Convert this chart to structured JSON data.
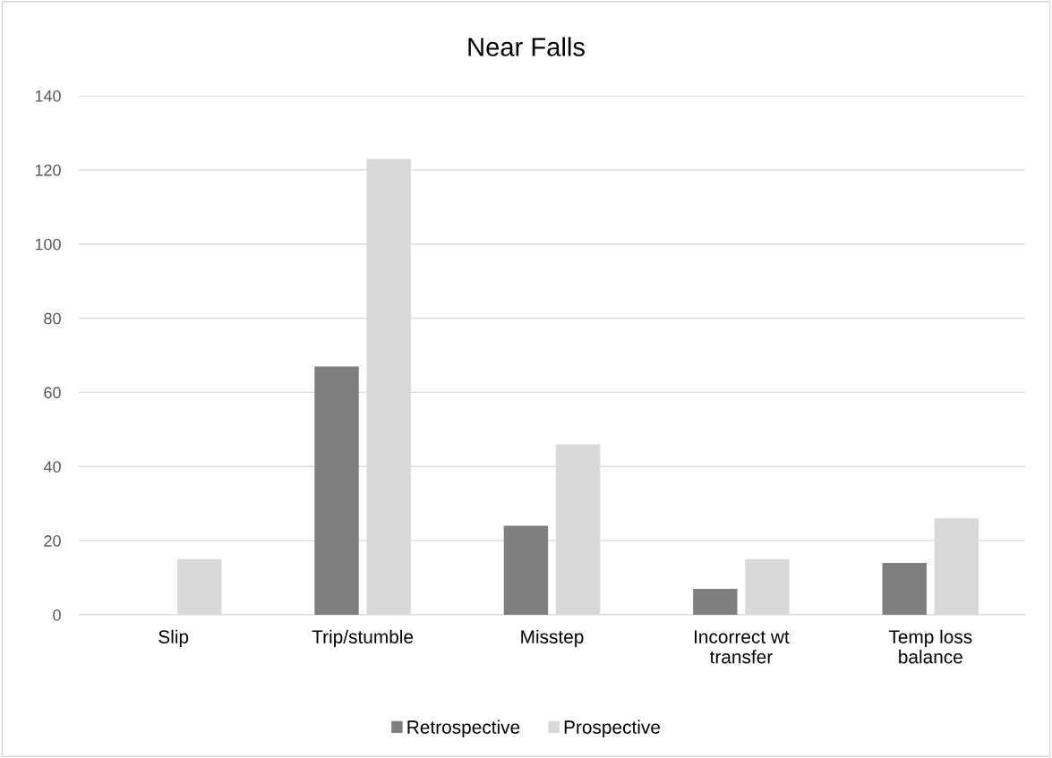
{
  "chart_data": {
    "type": "bar",
    "title": "Near Falls",
    "categories": [
      "Slip",
      "Trip/stumble",
      "Misstep",
      "Incorrect wt transfer",
      "Temp loss balance"
    ],
    "series": [
      {
        "name": "Retrospective",
        "color": "#7f7f7f",
        "values": [
          0,
          67,
          24,
          7,
          14
        ]
      },
      {
        "name": "Prospective",
        "color": "#d9d9d9",
        "values": [
          15,
          123,
          46,
          15,
          26
        ]
      }
    ],
    "ylim": [
      0,
      140
    ],
    "yticks": [
      0,
      20,
      40,
      60,
      80,
      100,
      120,
      140
    ],
    "grid": "y",
    "legend": "bottom"
  }
}
